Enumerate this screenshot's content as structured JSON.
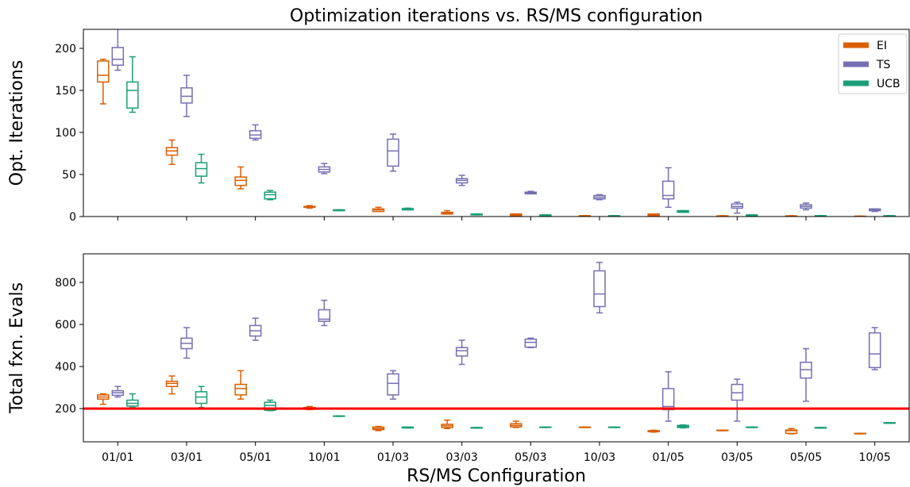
{
  "chart_data": [
    {
      "type": "box",
      "title": "Optimization iterations vs. RS/MS configuration",
      "ylabel": "Opt. Iterations",
      "ylim": [
        0,
        222.6
      ],
      "yticks": [
        0,
        50,
        100,
        150,
        200
      ],
      "legend": "upper right",
      "series": [
        {
          "name": "EI",
          "color": "#d95f02",
          "values": [
            {
              "whislo": 134,
              "q1": 160,
              "med": 168,
              "q3": 185,
              "whishi": 187
            },
            {
              "whislo": 62,
              "q1": 73,
              "med": 78,
              "q3": 82,
              "whishi": 91
            },
            {
              "whislo": 33,
              "q1": 37,
              "med": 43,
              "q3": 47,
              "whishi": 59
            },
            {
              "whislo": 10,
              "q1": 11,
              "med": 11.5,
              "q3": 12,
              "whishi": 13
            },
            {
              "whislo": 6,
              "q1": 6,
              "med": 8,
              "q3": 9,
              "whishi": 11
            },
            {
              "whislo": 3,
              "q1": 3,
              "med": 4,
              "q3": 5,
              "whishi": 7
            },
            {
              "whislo": 1,
              "q1": 1,
              "med": 2,
              "q3": 3,
              "whishi": 3
            },
            {
              "whislo": 0.5,
              "q1": 0.5,
              "med": 0.8,
              "q3": 1,
              "whishi": 1
            },
            {
              "whislo": 1,
              "q1": 1,
              "med": 2,
              "q3": 3,
              "whishi": 3
            },
            {
              "whislo": 0,
              "q1": 0.3,
              "med": 0.5,
              "q3": 0.8,
              "whishi": 1
            },
            {
              "whislo": 0,
              "q1": 0.3,
              "med": 0.5,
              "q3": 0.8,
              "whishi": 1
            },
            {
              "whislo": 0,
              "q1": 0.2,
              "med": 0.3,
              "q3": 0.4,
              "whishi": 0.5
            }
          ]
        },
        {
          "name": "TS",
          "color": "#7570b3",
          "values": [
            {
              "whislo": 174,
              "q1": 180,
              "med": 187,
              "q3": 201,
              "whishi": 228
            },
            {
              "whislo": 119,
              "q1": 135,
              "med": 143,
              "q3": 153,
              "whishi": 168
            },
            {
              "whislo": 91,
              "q1": 93,
              "med": 97,
              "q3": 102,
              "whishi": 109
            },
            {
              "whislo": 51,
              "q1": 53,
              "med": 56,
              "q3": 59,
              "whishi": 63
            },
            {
              "whislo": 54,
              "q1": 60,
              "med": 78,
              "q3": 92,
              "whishi": 98
            },
            {
              "whislo": 37,
              "q1": 40,
              "med": 43,
              "q3": 45,
              "whishi": 49
            },
            {
              "whislo": 27,
              "q1": 27,
              "med": 28,
              "q3": 29,
              "whishi": 30
            },
            {
              "whislo": 20,
              "q1": 21,
              "med": 23,
              "q3": 25,
              "whishi": 26
            },
            {
              "whislo": 11,
              "q1": 21,
              "med": 25,
              "q3": 42,
              "whishi": 58
            },
            {
              "whislo": 4,
              "q1": 10,
              "med": 12,
              "q3": 15,
              "whishi": 17
            },
            {
              "whislo": 8,
              "q1": 10,
              "med": 12,
              "q3": 14,
              "whishi": 16
            },
            {
              "whislo": 6,
              "q1": 7,
              "med": 8,
              "q3": 9,
              "whishi": 9
            }
          ]
        },
        {
          "name": "UCB",
          "color": "#1b9e77",
          "values": [
            {
              "whislo": 124,
              "q1": 129,
              "med": 150,
              "q3": 160,
              "whishi": 190
            },
            {
              "whislo": 40,
              "q1": 48,
              "med": 57,
              "q3": 64,
              "whishi": 74
            },
            {
              "whislo": 20,
              "q1": 21,
              "med": 26,
              "q3": 29,
              "whishi": 31
            },
            {
              "whislo": 7,
              "q1": 7,
              "med": 7.5,
              "q3": 8,
              "whishi": 8
            },
            {
              "whislo": 8,
              "q1": 8,
              "med": 9,
              "q3": 9.5,
              "whishi": 10
            },
            {
              "whislo": 2,
              "q1": 2,
              "med": 2.5,
              "q3": 3,
              "whishi": 3
            },
            {
              "whislo": 1,
              "q1": 1,
              "med": 1.5,
              "q3": 2,
              "whishi": 2
            },
            {
              "whislo": 0.5,
              "q1": 0.5,
              "med": 0.8,
              "q3": 1,
              "whishi": 1
            },
            {
              "whislo": 5,
              "q1": 5,
              "med": 6,
              "q3": 7,
              "whishi": 7
            },
            {
              "whislo": 1,
              "q1": 1,
              "med": 1.5,
              "q3": 2,
              "whishi": 2
            },
            {
              "whislo": 0.5,
              "q1": 0.5,
              "med": 0.8,
              "q3": 1,
              "whishi": 1
            },
            {
              "whislo": 0.5,
              "q1": 0.5,
              "med": 0.8,
              "q3": 1,
              "whishi": 1
            }
          ]
        }
      ]
    },
    {
      "type": "box",
      "ylabel": "Total fxn. Evals",
      "xlabel": "RS/MS Configuration",
      "categories": [
        "01/01",
        "03/01",
        "05/01",
        "10/01",
        "01/03",
        "03/03",
        "05/03",
        "10/03",
        "01/05",
        "03/05",
        "05/05",
        "10/05"
      ],
      "ylim": [
        42,
        936
      ],
      "yticks": [
        200,
        400,
        600,
        800
      ],
      "hline": {
        "value": 200,
        "color": "#ff0000"
      },
      "series": [
        {
          "color": "#d95f02",
          "values": [
            {
              "whislo": 220,
              "q1": 245,
              "med": 255,
              "q3": 265,
              "whishi": 270
            },
            {
              "whislo": 270,
              "q1": 305,
              "med": 320,
              "q3": 330,
              "whishi": 355
            },
            {
              "whislo": 245,
              "q1": 265,
              "med": 295,
              "q3": 315,
              "whishi": 380
            },
            {
              "whislo": 195,
              "q1": 197,
              "med": 200,
              "q3": 205,
              "whishi": 210
            },
            {
              "whislo": 95,
              "q1": 100,
              "med": 105,
              "q3": 112,
              "whishi": 115
            },
            {
              "whislo": 105,
              "q1": 110,
              "med": 118,
              "q3": 125,
              "whishi": 145
            },
            {
              "whislo": 110,
              "q1": 113,
              "med": 120,
              "q3": 128,
              "whishi": 140
            },
            {
              "whislo": 110,
              "q1": 110,
              "med": 111,
              "q3": 112,
              "whishi": 112
            },
            {
              "whislo": 88,
              "q1": 90,
              "med": 93,
              "q3": 95,
              "whishi": 97
            },
            {
              "whislo": 95,
              "q1": 95,
              "med": 96,
              "q3": 97,
              "whishi": 97
            },
            {
              "whislo": 80,
              "q1": 82,
              "med": 95,
              "q3": 98,
              "whishi": 105
            },
            {
              "whislo": 80,
              "q1": 80,
              "med": 81,
              "q3": 82,
              "whishi": 82
            }
          ]
        },
        {
          "color": "#7570b3",
          "values": [
            {
              "whislo": 255,
              "q1": 263,
              "med": 275,
              "q3": 285,
              "whishi": 305
            },
            {
              "whislo": 440,
              "q1": 485,
              "med": 510,
              "q3": 535,
              "whishi": 585
            },
            {
              "whislo": 525,
              "q1": 545,
              "med": 570,
              "q3": 595,
              "whishi": 630
            },
            {
              "whislo": 595,
              "q1": 615,
              "med": 625,
              "q3": 670,
              "whishi": 715
            },
            {
              "whislo": 245,
              "q1": 265,
              "med": 320,
              "q3": 365,
              "whishi": 380
            },
            {
              "whislo": 410,
              "q1": 450,
              "med": 475,
              "q3": 490,
              "whishi": 525
            },
            {
              "whislo": 490,
              "q1": 492,
              "med": 515,
              "q3": 530,
              "whishi": 535
            },
            {
              "whislo": 655,
              "q1": 685,
              "med": 745,
              "q3": 855,
              "whishi": 895
            },
            {
              "whislo": 140,
              "q1": 195,
              "med": 210,
              "q3": 295,
              "whishi": 375
            },
            {
              "whislo": 140,
              "q1": 240,
              "med": 275,
              "q3": 315,
              "whishi": 340
            },
            {
              "whislo": 235,
              "q1": 345,
              "med": 385,
              "q3": 420,
              "whishi": 485
            },
            {
              "whislo": 385,
              "q1": 395,
              "med": 460,
              "q3": 560,
              "whishi": 585
            }
          ]
        },
        {
          "color": "#1b9e77",
          "values": [
            {
              "whislo": 205,
              "q1": 212,
              "med": 225,
              "q3": 240,
              "whishi": 270
            },
            {
              "whislo": 205,
              "q1": 225,
              "med": 255,
              "q3": 280,
              "whishi": 305
            },
            {
              "whislo": 190,
              "q1": 192,
              "med": 215,
              "q3": 230,
              "whishi": 240
            },
            {
              "whislo": 163,
              "q1": 163,
              "med": 164,
              "q3": 165,
              "whishi": 165
            },
            {
              "whislo": 108,
              "q1": 108,
              "med": 110,
              "q3": 112,
              "whishi": 112
            },
            {
              "whislo": 107,
              "q1": 107,
              "med": 108,
              "q3": 110,
              "whishi": 110
            },
            {
              "whislo": 110,
              "q1": 110,
              "med": 111,
              "q3": 112,
              "whishi": 112
            },
            {
              "whislo": 110,
              "q1": 110,
              "med": 111,
              "q3": 112,
              "whishi": 112
            },
            {
              "whislo": 108,
              "q1": 110,
              "med": 115,
              "q3": 120,
              "whishi": 122
            },
            {
              "whislo": 110,
              "q1": 110,
              "med": 111,
              "q3": 112,
              "whishi": 112
            },
            {
              "whislo": 107,
              "q1": 107,
              "med": 108,
              "q3": 110,
              "whishi": 110
            },
            {
              "whislo": 130,
              "q1": 130,
              "med": 131,
              "q3": 133,
              "whishi": 133
            }
          ]
        }
      ]
    }
  ]
}
